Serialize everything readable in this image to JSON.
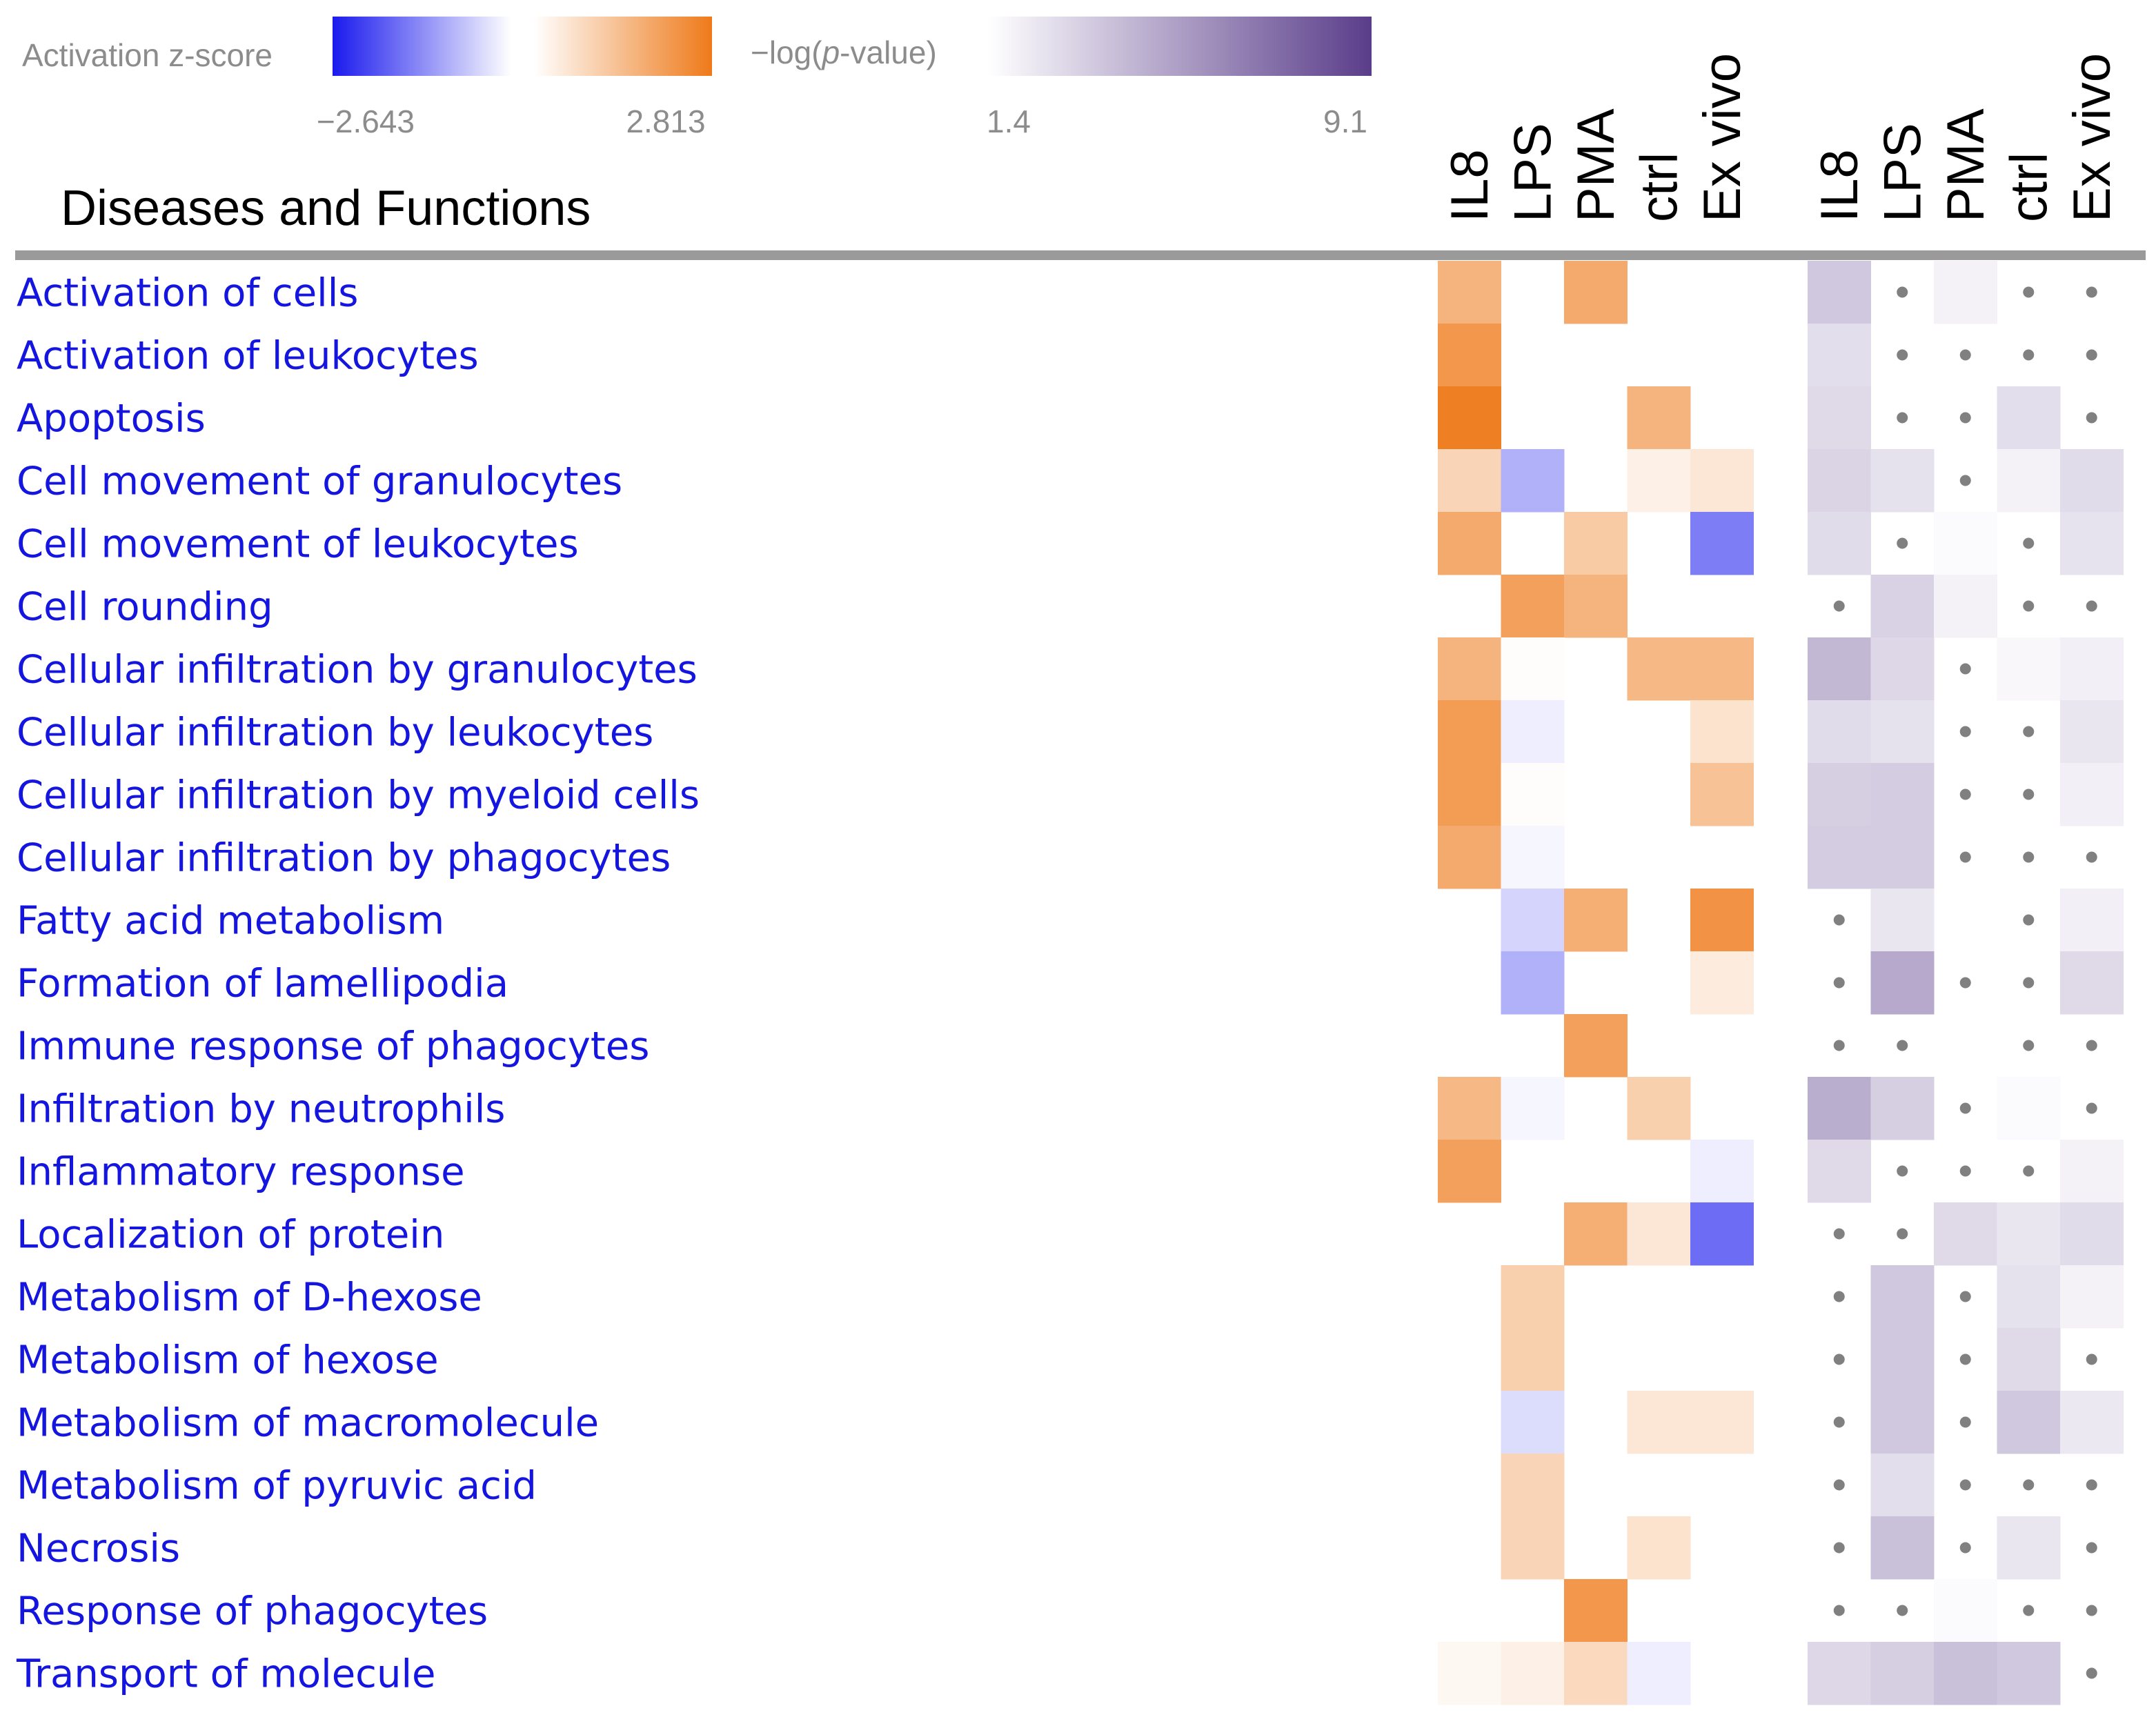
{
  "colors": {
    "negative": "#1a1aee",
    "positive": "#ee7a1a",
    "pvalue": "#5a3d8a",
    "row_label": "#1515e0",
    "dot": "#808080",
    "separator": "#9a9a9a"
  },
  "legend": {
    "zscore": {
      "label": "Activation z-score",
      "min_label": "−2.643",
      "max_label": "2.813",
      "min": -2.643,
      "max": 2.813
    },
    "pvalue": {
      "label_prefix": "−log(",
      "label_italic": "p",
      "label_suffix": "-value)",
      "min_label": "1.4",
      "max_label": "9.1",
      "min": 1.4,
      "max": 9.1
    }
  },
  "chart_data": {
    "type": "heatmap",
    "title": "Diseases and Functions",
    "zscore_columns": [
      "IL8",
      "LPS",
      "PMA",
      "ctrl",
      "Ex vivo"
    ],
    "pvalue_columns": [
      "IL8",
      "LPS",
      "PMA",
      "ctrl",
      "Ex vivo"
    ],
    "note": "zscore null = blank cell; pvalue null = not significant (grey dot); pvalue 0 = blank",
    "rows": [
      {
        "name": "Activation of cells",
        "zscore": [
          1.6,
          null,
          1.8,
          null,
          null
        ],
        "pvalue": [
          3.6,
          null,
          1.9,
          null,
          null
        ]
      },
      {
        "name": "Activation of leukocytes",
        "zscore": [
          2.2,
          null,
          null,
          null,
          null
        ],
        "pvalue": [
          2.7,
          null,
          null,
          null,
          null
        ]
      },
      {
        "name": "Apoptosis",
        "zscore": [
          2.7,
          null,
          null,
          1.6,
          null
        ],
        "pvalue": [
          2.9,
          null,
          null,
          2.7,
          null
        ]
      },
      {
        "name": "Cell movement of granulocytes",
        "zscore": [
          0.9,
          -0.9,
          null,
          0.3,
          0.5
        ],
        "pvalue": [
          3.1,
          2.6,
          null,
          1.9,
          2.8
        ]
      },
      {
        "name": "Cell movement of leukocytes",
        "zscore": [
          1.8,
          null,
          1.1,
          null,
          -1.5
        ],
        "pvalue": [
          2.8,
          null,
          1.6,
          null,
          2.5
        ]
      },
      {
        "name": "Cell rounding",
        "zscore": [
          null,
          2.0,
          1.6,
          null,
          null
        ],
        "pvalue": [
          null,
          3.2,
          1.9,
          null,
          null
        ]
      },
      {
        "name": "Cellular infiltration by granulocytes",
        "zscore": [
          1.6,
          0.05,
          null,
          1.5,
          1.5
        ],
        "pvalue": [
          4.2,
          3.0,
          null,
          1.7,
          2.0
        ]
      },
      {
        "name": "Cellular infiltration by leukocytes",
        "zscore": [
          2.1,
          -0.2,
          null,
          null,
          0.6
        ],
        "pvalue": [
          2.8,
          2.6,
          null,
          null,
          2.4
        ]
      },
      {
        "name": "Cellular infiltration by myeloid cells",
        "zscore": [
          2.1,
          0.05,
          null,
          null,
          1.3
        ],
        "pvalue": [
          3.3,
          3.4,
          null,
          null,
          2.0
        ]
      },
      {
        "name": "Cellular infiltration by phagocytes",
        "zscore": [
          1.8,
          -0.1,
          null,
          null,
          null
        ],
        "pvalue": [
          3.4,
          3.4,
          null,
          null,
          null
        ]
      },
      {
        "name": "Fatty acid metabolism",
        "zscore": [
          null,
          -0.5,
          1.7,
          null,
          2.3
        ],
        "pvalue": [
          null,
          2.4,
          0,
          null,
          2.0
        ]
      },
      {
        "name": "Formation of lamellipodia",
        "zscore": [
          null,
          -0.9,
          null,
          null,
          0.4
        ],
        "pvalue": [
          null,
          4.8,
          null,
          null,
          2.9
        ]
      },
      {
        "name": "Immune response of phagocytes",
        "zscore": [
          null,
          null,
          2.0,
          null,
          null
        ],
        "pvalue": [
          null,
          null,
          0,
          null,
          null
        ]
      },
      {
        "name": "Infiltration by neutrophils",
        "zscore": [
          1.5,
          -0.1,
          null,
          1.0,
          null
        ],
        "pvalue": [
          4.6,
          3.3,
          null,
          1.6,
          null
        ]
      },
      {
        "name": "Inflammatory response",
        "zscore": [
          2.0,
          null,
          null,
          null,
          -0.2
        ],
        "pvalue": [
          2.9,
          null,
          null,
          null,
          1.9
        ]
      },
      {
        "name": "Localization of protein",
        "zscore": [
          null,
          null,
          1.7,
          0.5,
          -1.7
        ],
        "pvalue": [
          null,
          null,
          2.9,
          2.4,
          2.8
        ]
      },
      {
        "name": "Metabolism of D-hexose",
        "zscore": [
          null,
          1.0,
          null,
          null,
          null
        ],
        "pvalue": [
          null,
          3.6,
          null,
          2.6,
          1.9
        ]
      },
      {
        "name": "Metabolism of hexose",
        "zscore": [
          null,
          1.0,
          null,
          null,
          null
        ],
        "pvalue": [
          null,
          3.6,
          null,
          2.9,
          null
        ]
      },
      {
        "name": "Metabolism of macromolecule",
        "zscore": [
          null,
          -0.4,
          null,
          0.5,
          0.5
        ],
        "pvalue": [
          null,
          3.6,
          null,
          3.6,
          2.3
        ]
      },
      {
        "name": "Metabolism of pyruvic acid",
        "zscore": [
          null,
          0.9,
          null,
          null,
          null
        ],
        "pvalue": [
          null,
          2.7,
          null,
          null,
          null
        ]
      },
      {
        "name": "Necrosis",
        "zscore": [
          null,
          0.9,
          null,
          0.6,
          null
        ],
        "pvalue": [
          null,
          3.9,
          null,
          2.4,
          null
        ]
      },
      {
        "name": "Response of phagocytes",
        "zscore": [
          null,
          null,
          2.2,
          null,
          null
        ],
        "pvalue": [
          null,
          null,
          1.6,
          null,
          null
        ]
      },
      {
        "name": "Transport of molecule",
        "zscore": [
          0.15,
          0.3,
          0.8,
          -0.2,
          null
        ],
        "pvalue": [
          3.0,
          3.3,
          3.9,
          3.6,
          null
        ]
      }
    ]
  }
}
